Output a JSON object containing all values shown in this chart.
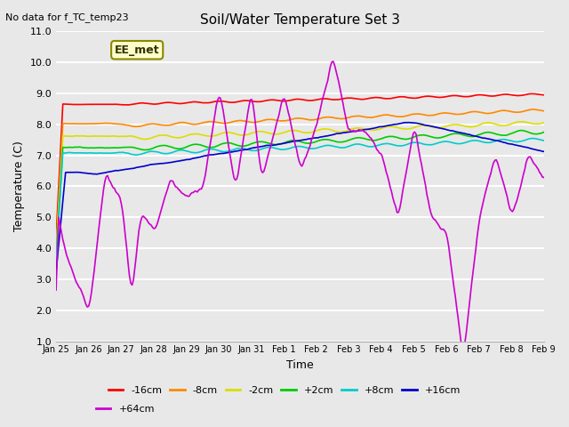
{
  "title": "Soil/Water Temperature Set 3",
  "xlabel": "Time",
  "ylabel": "Temperature (C)",
  "top_left_text": "No data for f_TC_temp23",
  "annotation": "EE_met",
  "ylim": [
    1.0,
    11.0
  ],
  "yticks": [
    1.0,
    2.0,
    3.0,
    4.0,
    5.0,
    6.0,
    7.0,
    8.0,
    9.0,
    10.0,
    11.0
  ],
  "xtick_labels": [
    "Jan 25",
    "Jan 26",
    "Jan 27",
    "Jan 28",
    "Jan 29",
    "Jan 30",
    "Jan 31",
    "Feb 1",
    "Feb 2",
    "Feb 3",
    "Feb 4",
    "Feb 5",
    "Feb 6",
    "Feb 7",
    "Feb 8",
    "Feb 9"
  ],
  "bg_color": "#e8e8e8",
  "grid_color": "#ffffff",
  "series_neg16cm_color": "#ff0000",
  "series_neg8cm_color": "#ff8800",
  "series_neg2cm_color": "#dddd00",
  "series_pos2cm_color": "#00cc00",
  "series_pos8cm_color": "#00cccc",
  "series_pos16cm_color": "#0000cc",
  "series_pos64cm_color": "#cc00cc",
  "line_lw": 1.2,
  "legend_labels": [
    "-16cm",
    "-8cm",
    "-2cm",
    "+2cm",
    "+8cm",
    "+16cm",
    "+64cm"
  ]
}
